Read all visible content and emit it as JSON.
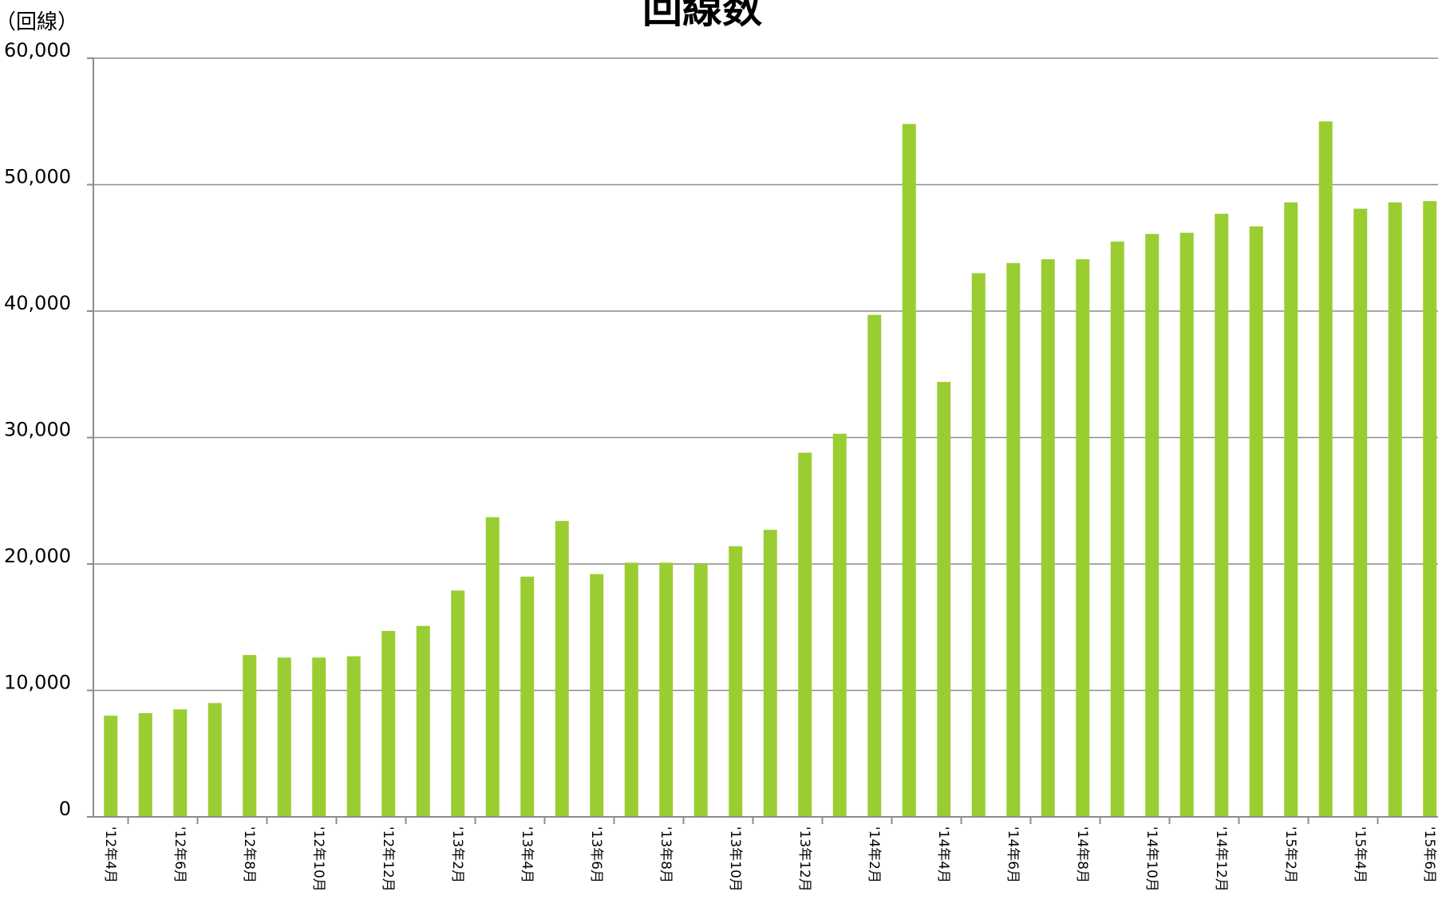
{
  "chart_data": {
    "type": "bar",
    "title": "回線数",
    "unit_label": "（回線）",
    "xlabel": "",
    "ylabel": "",
    "ylim": [
      0,
      60000
    ],
    "yticks": [
      "0",
      "10,000",
      "20,000",
      "30,000",
      "40,000",
      "50,000",
      "60,000"
    ],
    "grid": true,
    "legend": "none",
    "bar_color": "#9acd32",
    "tick_labels": [
      "'12年4月",
      "'12年6月",
      "'12年8月",
      "'12年10月",
      "'12年12月",
      "'13年2月",
      "'13年4月",
      "'13年6月",
      "'13年8月",
      "'13年10月",
      "'13年12月",
      "'14年2月",
      "'14年4月",
      "'14年6月",
      "'14年8月",
      "'14年10月",
      "'14年12月",
      "'15年2月",
      "'15年4月",
      "'15年6月"
    ],
    "categories": [
      "'12年4月",
      "'12年5月",
      "'12年6月",
      "'12年7月",
      "'12年8月",
      "'12年9月",
      "'12年10月",
      "'12年11月",
      "'12年12月",
      "'13年1月",
      "'13年2月",
      "'13年3月",
      "'13年4月",
      "'13年5月",
      "'13年6月",
      "'13年7月",
      "'13年8月",
      "'13年9月",
      "'13年10月",
      "'13年11月",
      "'13年12月",
      "'14年1月",
      "'14年2月",
      "'14年3月",
      "'14年4月",
      "'14年5月",
      "'14年6月",
      "'14年7月",
      "'14年8月",
      "'14年9月",
      "'14年10月",
      "'14年11月",
      "'14年12月",
      "'15年1月",
      "'15年2月",
      "'15年3月",
      "'15年4月",
      "'15年5月",
      "'15年6月"
    ],
    "values": [
      8000,
      8200,
      8500,
      9000,
      12800,
      12600,
      12600,
      12700,
      14700,
      15100,
      17900,
      23700,
      19000,
      23400,
      19200,
      20100,
      20100,
      20000,
      21400,
      22700,
      28800,
      30300,
      39700,
      54800,
      34400,
      43000,
      43800,
      44100,
      44100,
      45500,
      46100,
      46200,
      47700,
      46700,
      48600,
      55000,
      48100,
      48600,
      48700
    ]
  }
}
